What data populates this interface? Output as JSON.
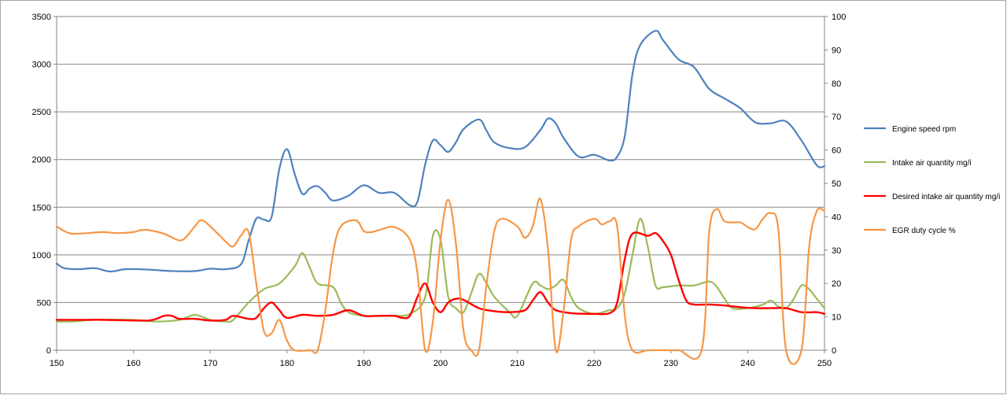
{
  "chart_data": {
    "type": "line",
    "title": "",
    "xlabel": "",
    "ylabel": "",
    "xlim": [
      150,
      250
    ],
    "ylim": [
      0,
      3500
    ],
    "y2lim": [
      0,
      100
    ],
    "grid": true,
    "legend_position": "right",
    "x_ticks": [
      "150",
      "160",
      "170",
      "180",
      "190",
      "200",
      "210",
      "220",
      "230",
      "240",
      "250"
    ],
    "y_ticks": [
      "0",
      "500",
      "1000",
      "1500",
      "2000",
      "2500",
      "3000",
      "3500"
    ],
    "y2_ticks": [
      "0",
      "10",
      "20",
      "30",
      "40",
      "50",
      "60",
      "70",
      "80",
      "90",
      "100"
    ],
    "series": [
      {
        "name": "Engine speed rpm",
        "axis": "left",
        "color": "#4f81bd",
        "points": [
          [
            150,
            910
          ],
          [
            151,
            860
          ],
          [
            153,
            850
          ],
          [
            155,
            860
          ],
          [
            157,
            825
          ],
          [
            159,
            850
          ],
          [
            162,
            845
          ],
          [
            165,
            830
          ],
          [
            168,
            830
          ],
          [
            170,
            855
          ],
          [
            172,
            850
          ],
          [
            174,
            900
          ],
          [
            175,
            1150
          ],
          [
            176,
            1380
          ],
          [
            177,
            1370
          ],
          [
            178,
            1400
          ],
          [
            179,
            1900
          ],
          [
            180,
            2110
          ],
          [
            181,
            1850
          ],
          [
            182,
            1640
          ],
          [
            183,
            1700
          ],
          [
            184,
            1720
          ],
          [
            185,
            1650
          ],
          [
            186,
            1570
          ],
          [
            188,
            1620
          ],
          [
            190,
            1730
          ],
          [
            192,
            1650
          ],
          [
            194,
            1650
          ],
          [
            196,
            1520
          ],
          [
            197,
            1560
          ],
          [
            198,
            1950
          ],
          [
            199,
            2200
          ],
          [
            200,
            2150
          ],
          [
            201,
            2080
          ],
          [
            202,
            2180
          ],
          [
            203,
            2320
          ],
          [
            205,
            2420
          ],
          [
            206,
            2300
          ],
          [
            207,
            2180
          ],
          [
            209,
            2120
          ],
          [
            211,
            2130
          ],
          [
            213,
            2310
          ],
          [
            214,
            2430
          ],
          [
            215,
            2380
          ],
          [
            216,
            2230
          ],
          [
            218,
            2030
          ],
          [
            220,
            2050
          ],
          [
            222,
            1990
          ],
          [
            223,
            2030
          ],
          [
            224,
            2250
          ],
          [
            225,
            2900
          ],
          [
            226,
            3200
          ],
          [
            228,
            3350
          ],
          [
            229,
            3250
          ],
          [
            231,
            3050
          ],
          [
            233,
            2970
          ],
          [
            235,
            2740
          ],
          [
            237,
            2640
          ],
          [
            239,
            2540
          ],
          [
            241,
            2390
          ],
          [
            243,
            2380
          ],
          [
            245,
            2400
          ],
          [
            247,
            2200
          ],
          [
            249,
            1940
          ],
          [
            250,
            1930
          ]
        ]
      },
      {
        "name": "Intake air quantity mg/i",
        "axis": "right",
        "color": "#9bbb59",
        "points": [
          [
            150,
            8.6
          ],
          [
            152,
            8.6
          ],
          [
            155,
            9.1
          ],
          [
            160,
            9.1
          ],
          [
            163,
            8.6
          ],
          [
            166,
            9.1
          ],
          [
            168,
            10.6
          ],
          [
            170,
            9.1
          ],
          [
            172,
            8.6
          ],
          [
            173,
            9.1
          ],
          [
            175,
            14.3
          ],
          [
            177,
            18.3
          ],
          [
            179,
            20.0
          ],
          [
            181,
            25.1
          ],
          [
            182,
            29.1
          ],
          [
            183,
            24.6
          ],
          [
            184,
            20.0
          ],
          [
            186,
            18.9
          ],
          [
            187,
            14.3
          ],
          [
            188,
            11.4
          ],
          [
            190,
            10.3
          ],
          [
            192,
            10.3
          ],
          [
            194,
            10.3
          ],
          [
            196,
            10.9
          ],
          [
            198,
            16.0
          ],
          [
            199,
            34.3
          ],
          [
            200,
            33.1
          ],
          [
            201,
            16.0
          ],
          [
            202,
            12.6
          ],
          [
            203,
            11.4
          ],
          [
            204,
            17.1
          ],
          [
            205,
            22.9
          ],
          [
            206,
            20.0
          ],
          [
            207,
            16.0
          ],
          [
            209,
            11.4
          ],
          [
            210,
            10.3
          ],
          [
            212,
            20.0
          ],
          [
            213,
            19.4
          ],
          [
            214,
            18.3
          ],
          [
            215,
            19.4
          ],
          [
            216,
            21.1
          ],
          [
            217,
            16.0
          ],
          [
            218,
            12.6
          ],
          [
            220,
            10.9
          ],
          [
            222,
            12.0
          ],
          [
            223,
            12.6
          ],
          [
            224,
            17.1
          ],
          [
            225,
            28.6
          ],
          [
            226,
            39.4
          ],
          [
            227,
            30.9
          ],
          [
            228,
            19.4
          ],
          [
            229,
            18.9
          ],
          [
            231,
            19.4
          ],
          [
            233,
            19.4
          ],
          [
            235,
            20.6
          ],
          [
            236,
            18.9
          ],
          [
            237,
            15.4
          ],
          [
            238,
            12.6
          ],
          [
            240,
            12.6
          ],
          [
            242,
            13.7
          ],
          [
            243,
            14.9
          ],
          [
            244,
            13.1
          ],
          [
            245,
            12.6
          ],
          [
            246,
            15.4
          ],
          [
            247,
            19.4
          ],
          [
            248,
            18.3
          ],
          [
            249,
            15.4
          ],
          [
            250,
            12.6
          ]
        ]
      },
      {
        "name": "Desired intake air quantity  mg/i",
        "axis": "right",
        "color": "#ff0000",
        "points": [
          [
            150,
            9.1
          ],
          [
            152,
            9.1
          ],
          [
            154,
            9.1
          ],
          [
            156,
            9.1
          ],
          [
            160,
            8.9
          ],
          [
            162,
            8.9
          ],
          [
            163,
            9.4
          ],
          [
            164,
            10.3
          ],
          [
            165,
            10.3
          ],
          [
            166,
            9.4
          ],
          [
            168,
            9.4
          ],
          [
            170,
            8.9
          ],
          [
            172,
            9.1
          ],
          [
            173,
            10.3
          ],
          [
            175,
            9.4
          ],
          [
            176,
            9.7
          ],
          [
            177,
            12.6
          ],
          [
            178,
            14.3
          ],
          [
            179,
            12.0
          ],
          [
            180,
            9.7
          ],
          [
            182,
            10.6
          ],
          [
            184,
            10.3
          ],
          [
            186,
            10.6
          ],
          [
            188,
            12.0
          ],
          [
            190,
            10.3
          ],
          [
            192,
            10.3
          ],
          [
            194,
            10.3
          ],
          [
            195,
            9.7
          ],
          [
            196,
            10.3
          ],
          [
            197,
            16.0
          ],
          [
            198,
            20.0
          ],
          [
            199,
            14.3
          ],
          [
            200,
            11.4
          ],
          [
            201,
            14.3
          ],
          [
            202,
            15.4
          ],
          [
            203,
            15.1
          ],
          [
            205,
            12.6
          ],
          [
            207,
            11.7
          ],
          [
            209,
            11.4
          ],
          [
            211,
            12.0
          ],
          [
            212,
            14.9
          ],
          [
            213,
            17.4
          ],
          [
            214,
            14.3
          ],
          [
            215,
            12.0
          ],
          [
            217,
            11.1
          ],
          [
            219,
            10.9
          ],
          [
            220,
            10.9
          ],
          [
            222,
            11.1
          ],
          [
            223,
            14.3
          ],
          [
            224,
            27.4
          ],
          [
            225,
            34.9
          ],
          [
            227,
            34.3
          ],
          [
            228,
            35.1
          ],
          [
            229,
            32.6
          ],
          [
            230,
            28.6
          ],
          [
            231,
            21.1
          ],
          [
            232,
            14.9
          ],
          [
            233,
            13.7
          ],
          [
            235,
            13.7
          ],
          [
            237,
            13.4
          ],
          [
            239,
            12.9
          ],
          [
            241,
            12.6
          ],
          [
            243,
            12.6
          ],
          [
            245,
            12.6
          ],
          [
            247,
            11.4
          ],
          [
            249,
            11.4
          ],
          [
            250,
            10.9
          ]
        ]
      },
      {
        "name": "EGR duty cycle %",
        "axis": "right",
        "color": "#f79646",
        "points": [
          [
            150,
            37.1
          ],
          [
            151,
            35.7
          ],
          [
            152,
            34.9
          ],
          [
            154,
            35.1
          ],
          [
            156,
            35.4
          ],
          [
            158,
            35.1
          ],
          [
            160,
            35.4
          ],
          [
            161,
            36.0
          ],
          [
            162,
            36.0
          ],
          [
            164,
            34.9
          ],
          [
            166,
            32.9
          ],
          [
            167,
            34.3
          ],
          [
            168,
            37.1
          ],
          [
            169,
            38.9
          ],
          [
            171,
            34.9
          ],
          [
            172,
            32.6
          ],
          [
            173,
            31.1
          ],
          [
            174,
            34.3
          ],
          [
            175,
            35.4
          ],
          [
            176,
            20.0
          ],
          [
            177,
            5.7
          ],
          [
            178,
            5.1
          ],
          [
            179,
            9.1
          ],
          [
            180,
            2.9
          ],
          [
            181,
            0.0
          ],
          [
            183,
            0.0
          ],
          [
            184,
            0.0
          ],
          [
            185,
            12.0
          ],
          [
            186,
            29.1
          ],
          [
            187,
            37.1
          ],
          [
            189,
            38.9
          ],
          [
            190,
            35.7
          ],
          [
            191,
            35.4
          ],
          [
            192,
            36.0
          ],
          [
            194,
            36.9
          ],
          [
            196,
            33.1
          ],
          [
            197,
            22.9
          ],
          [
            198,
            0.0
          ],
          [
            199,
            8.6
          ],
          [
            200,
            33.1
          ],
          [
            201,
            45.1
          ],
          [
            202,
            32.0
          ],
          [
            203,
            5.7
          ],
          [
            204,
            0.0
          ],
          [
            205,
            0.0
          ],
          [
            206,
            20.0
          ],
          [
            207,
            35.7
          ],
          [
            208,
            39.4
          ],
          [
            210,
            37.1
          ],
          [
            211,
            33.7
          ],
          [
            212,
            37.1
          ],
          [
            213,
            45.4
          ],
          [
            214,
            30.0
          ],
          [
            215,
            0.0
          ],
          [
            216,
            11.4
          ],
          [
            217,
            33.1
          ],
          [
            218,
            37.1
          ],
          [
            220,
            39.4
          ],
          [
            221,
            37.7
          ],
          [
            222,
            38.6
          ],
          [
            223,
            37.1
          ],
          [
            224,
            10.3
          ],
          [
            225,
            0.0
          ],
          [
            227,
            0.0
          ],
          [
            229,
            0.0
          ],
          [
            231,
            0.0
          ],
          [
            234,
            0.0
          ],
          [
            235,
            35.7
          ],
          [
            236,
            42.3
          ],
          [
            237,
            38.6
          ],
          [
            239,
            38.3
          ],
          [
            240,
            36.9
          ],
          [
            241,
            36.3
          ],
          [
            242,
            39.4
          ],
          [
            243,
            41.1
          ],
          [
            244,
            36.0
          ],
          [
            245,
            0.0
          ],
          [
            247,
            0.0
          ],
          [
            248,
            30.9
          ],
          [
            249,
            41.7
          ],
          [
            250,
            41.7
          ]
        ]
      }
    ]
  }
}
